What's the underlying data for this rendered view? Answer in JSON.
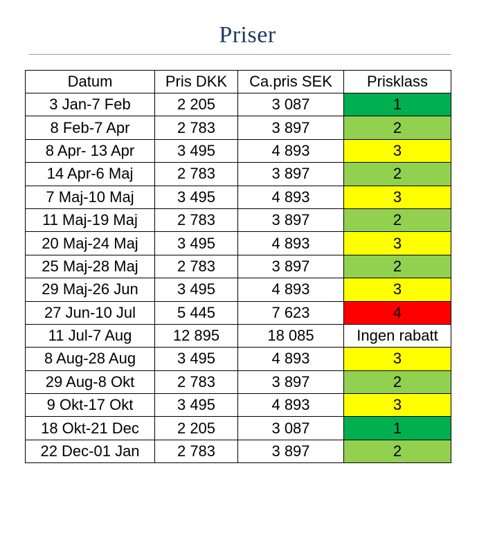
{
  "title": "Priser",
  "table": {
    "headers": [
      "Datum",
      "Pris DKK",
      "Ca.pris SEK",
      "Prisklass"
    ],
    "rows": [
      {
        "datum": "3 Jan-7 Feb",
        "pris_dkk": "2 205",
        "pris_sek": "3 087",
        "prisklass": "1",
        "color": "#00b050"
      },
      {
        "datum": "8 Feb-7 Apr",
        "pris_dkk": "2 783",
        "pris_sek": "3 897",
        "prisklass": "2",
        "color": "#92d050"
      },
      {
        "datum": "8 Apr- 13 Apr",
        "pris_dkk": "3 495",
        "pris_sek": "4 893",
        "prisklass": "3",
        "color": "#ffff00"
      },
      {
        "datum": "14 Apr-6 Maj",
        "pris_dkk": "2 783",
        "pris_sek": "3 897",
        "prisklass": "2",
        "color": "#92d050"
      },
      {
        "datum": "7 Maj-10 Maj",
        "pris_dkk": "3 495",
        "pris_sek": "4 893",
        "prisklass": "3",
        "color": "#ffff00"
      },
      {
        "datum": "11 Maj-19 Maj",
        "pris_dkk": "2 783",
        "pris_sek": "3 897",
        "prisklass": "2",
        "color": "#92d050"
      },
      {
        "datum": "20 Maj-24 Maj",
        "pris_dkk": "3 495",
        "pris_sek": "4 893",
        "prisklass": "3",
        "color": "#ffff00"
      },
      {
        "datum": "25 Maj-28 Maj",
        "pris_dkk": "2 783",
        "pris_sek": "3 897",
        "prisklass": "2",
        "color": "#92d050"
      },
      {
        "datum": "29 Maj-26 Jun",
        "pris_dkk": "3 495",
        "pris_sek": "4 893",
        "prisklass": "3",
        "color": "#ffff00"
      },
      {
        "datum": "27 Jun-10 Jul",
        "pris_dkk": "5 445",
        "pris_sek": "7 623",
        "prisklass": "4",
        "color": "#ff0000"
      },
      {
        "datum": "11 Jul-7 Aug",
        "pris_dkk": "12 895",
        "pris_sek": "18 085",
        "prisklass": "Ingen rabatt",
        "color": "#ffffff"
      },
      {
        "datum": "8 Aug-28 Aug",
        "pris_dkk": "3 495",
        "pris_sek": "4 893",
        "prisklass": "3",
        "color": "#ffff00"
      },
      {
        "datum": "29 Aug-8 Okt",
        "pris_dkk": "2 783",
        "pris_sek": "3 897",
        "prisklass": "2",
        "color": "#92d050"
      },
      {
        "datum": "9 Okt-17 Okt",
        "pris_dkk": "3 495",
        "pris_sek": "4 893",
        "prisklass": "3",
        "color": "#ffff00"
      },
      {
        "datum": "18 Okt-21 Dec",
        "pris_dkk": "2 205",
        "pris_sek": "3 087",
        "prisklass": "1",
        "color": "#00b050"
      },
      {
        "datum": "22 Dec-01 Jan",
        "pris_dkk": "2 783",
        "pris_sek": "3 897",
        "prisklass": "2",
        "color": "#92d050"
      }
    ]
  }
}
